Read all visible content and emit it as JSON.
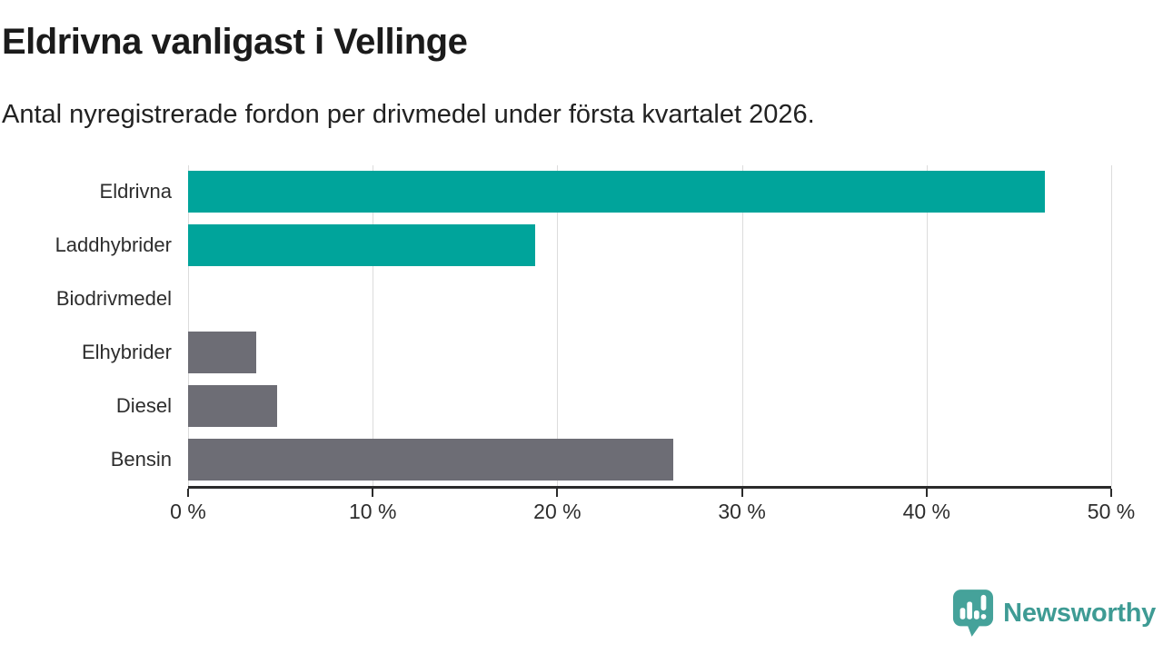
{
  "chart_data": {
    "type": "bar",
    "orientation": "horizontal",
    "title": "Eldrivna vanligast i Vellinge",
    "subtitle": "Antal nyregistrerade fordon per drivmedel under första kvartalet 2026.",
    "categories": [
      "Eldrivna",
      "Laddhybrider",
      "Biodrivmedel",
      "Elhybrider",
      "Diesel",
      "Bensin"
    ],
    "values": [
      46.4,
      18.8,
      0,
      3.7,
      4.8,
      26.3
    ],
    "unit": "%",
    "xlabel": "",
    "ylabel": "",
    "xlim": [
      0,
      50
    ],
    "x_ticks": [
      0,
      10,
      20,
      30,
      40,
      50
    ],
    "x_tick_labels": [
      "0 %",
      "10 %",
      "20 %",
      "30 %",
      "40 %",
      "50 %"
    ],
    "bar_colors": [
      "#00a49b",
      "#00a49b",
      "#6d6d75",
      "#6d6d75",
      "#6d6d75",
      "#6d6d75"
    ],
    "grid": "vertical-gridlines-on",
    "legend": "none"
  },
  "branding": {
    "name": "Newsworthy",
    "text_color": "#3e9b94",
    "icon": "newsworthy-logo-icon",
    "icon_color": "#45a29a"
  },
  "colors": {
    "accent_teal": "#00a49b",
    "neutral_gray": "#6d6d75",
    "axis": "#2b2b2b",
    "gridline": "#dcdcdc",
    "title_text": "#1b1b1b",
    "body_text": "#2d2d2d",
    "background": "#ffffff"
  }
}
